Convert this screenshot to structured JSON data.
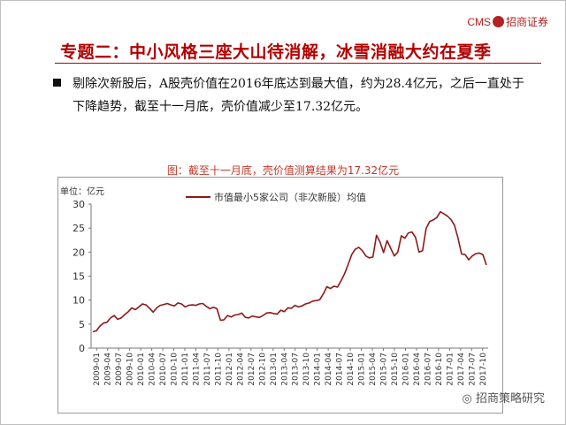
{
  "header": {
    "logo_text": "CMS",
    "logo_cn": "招商证券"
  },
  "slide": {
    "title": "专题二：中小风格三座大山待消解，冰雪消融大约在夏季",
    "bullet": "剔除次新股后，A股壳价值在2016年底达到最大值，约为28.4亿元，之后一直处于下降趋势，截至十一月底，壳价值减少至17.32亿元。"
  },
  "watermark": "招商策略研究",
  "colors": {
    "title": "#b30000",
    "line": "#8b1a1a",
    "chart_title": "#c0392b"
  },
  "chart_data": {
    "type": "line",
    "title": "图：截至十一月底，壳价值测算结果为17.32亿元",
    "unit_label": "单位：亿元",
    "ylim": [
      0,
      30
    ],
    "yticks": [
      0,
      5,
      10,
      15,
      20,
      25,
      30
    ],
    "legend_position": "top",
    "grid": false,
    "x_tick_labels": [
      "2009-01",
      "2009-04",
      "2009-07",
      "2009-10",
      "2010-01",
      "2010-04",
      "2010-07",
      "2010-10",
      "2011-01",
      "2011-04",
      "2011-07",
      "2011-10",
      "2012-01",
      "2012-04",
      "2012-07",
      "2012-10",
      "2013-01",
      "2013-04",
      "2013-07",
      "2013-10",
      "2014-01",
      "2014-04",
      "2014-07",
      "2014-10",
      "2015-01",
      "2015-04",
      "2015-07",
      "2015-10",
      "2016-01",
      "2016-04",
      "2016-07",
      "2016-10",
      "2017-01",
      "2017-04",
      "2017-07",
      "2017-10"
    ],
    "series": [
      {
        "name": "市值最小5家公司（非次新股）均值",
        "values": [
          3.4,
          3.6,
          4.6,
          5.2,
          5.4,
          6.3,
          6.8,
          6.0,
          6.3,
          7.0,
          7.6,
          8.4,
          8.0,
          8.6,
          9.2,
          9.0,
          8.3,
          7.5,
          8.4,
          8.9,
          9.1,
          9.3,
          9.0,
          8.8,
          9.4,
          9.2,
          8.6,
          8.9,
          9.0,
          8.9,
          9.2,
          9.3,
          8.7,
          8.2,
          8.5,
          8.2,
          5.8,
          5.9,
          6.8,
          6.5,
          6.9,
          7.0,
          7.3,
          6.4,
          6.3,
          6.7,
          6.5,
          6.4,
          6.8,
          7.3,
          7.4,
          7.2,
          7.1,
          7.9,
          7.6,
          8.4,
          8.3,
          8.9,
          8.6,
          8.8,
          9.2,
          9.4,
          9.8,
          9.9,
          10.1,
          11.3,
          12.8,
          12.4,
          12.9,
          12.7,
          14.0,
          15.5,
          17.4,
          19.5,
          20.6,
          21.0,
          20.3,
          19.2,
          18.8,
          19.0,
          23.5,
          22.1,
          19.9,
          22.4,
          20.8,
          19.2,
          20.0,
          23.4,
          22.9,
          24.0,
          24.2,
          23.1,
          20.0,
          20.3,
          24.9,
          26.4,
          26.7,
          27.2,
          28.4,
          28.0,
          27.5,
          26.8,
          25.6,
          22.9,
          19.6,
          19.5,
          18.4,
          19.2,
          19.7,
          19.8,
          19.5,
          17.3
        ]
      }
    ]
  }
}
